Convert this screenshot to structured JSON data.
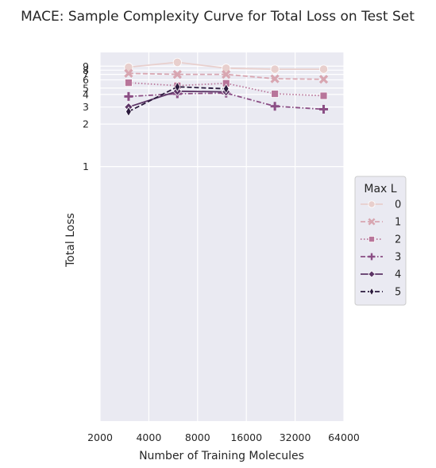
{
  "chart_data": {
    "type": "line",
    "title": "MACE: Sample Complexity Curve for Total Loss on Test Set",
    "xlabel": "Number of Training Molecules",
    "ylabel": "Total Loss",
    "x_scale": "log2",
    "xlim": [
      2000,
      64000
    ],
    "x_ticks": [
      2000,
      4000,
      8000,
      16000,
      32000,
      64000
    ],
    "x_tick_labels": [
      "2000",
      "4000",
      "8000",
      "16000",
      "32000",
      "64000"
    ],
    "y_scale": "log",
    "ylim": [
      0.027,
      1.15
    ],
    "y_ticks": [
      1,
      2,
      3,
      4,
      5,
      6,
      7,
      8,
      9
    ],
    "y_tick_labels": [
      "1",
      "2",
      "3",
      "4",
      "5",
      "6",
      "7",
      "8",
      "9"
    ],
    "grid": true,
    "legend": {
      "title": "Max L",
      "position": "right"
    },
    "x": [
      3000,
      6000,
      12000,
      24000,
      48000
    ],
    "series": [
      {
        "name": "0",
        "marker": "circle",
        "dash": "solid",
        "color": "#e8cfcd",
        "values": [
          0.99,
          1.04,
          0.98,
          0.97,
          0.97
        ]
      },
      {
        "name": "1",
        "marker": "x",
        "dash": "dashed",
        "color": "#d8a6b1",
        "values": [
          0.93,
          0.92,
          0.92,
          0.88,
          0.875
        ]
      },
      {
        "name": "2",
        "marker": "square",
        "dash": "dotted",
        "color": "#b8759a",
        "values": [
          0.845,
          0.82,
          0.84,
          0.755,
          0.74
        ]
      },
      {
        "name": "3",
        "marker": "plus",
        "dash": "dashdot",
        "color": "#8b4e85",
        "values": [
          0.735,
          0.755,
          0.76,
          0.665,
          0.645
        ]
      },
      {
        "name": "4",
        "marker": "diamond",
        "dash": "solid",
        "color": "#5c3566",
        "values": [
          0.66,
          0.775,
          0.77,
          null,
          null
        ]
      },
      {
        "name": "5",
        "marker": "thin_diamond",
        "dash": "dashed",
        "color": "#2b1a3d",
        "values": [
          0.63,
          0.81,
          0.795,
          null,
          null
        ]
      }
    ]
  }
}
